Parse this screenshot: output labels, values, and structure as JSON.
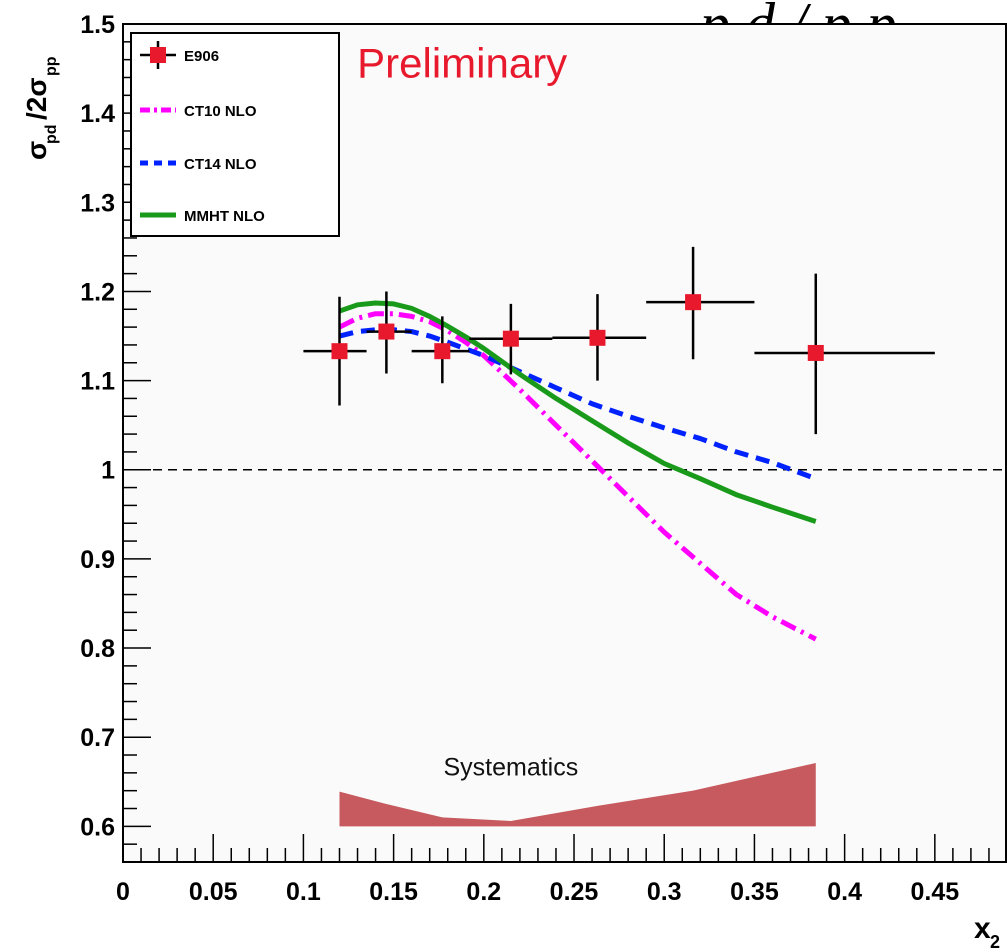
{
  "chart_data": {
    "type": "scatter",
    "title": "",
    "top_text": "p d / p p",
    "xlabel": "x",
    "xlabel_sub": "2",
    "ylabel": "σ",
    "ylabel_sub": "pd",
    "ylabel_mid": "/2σ",
    "ylabel_sub2": "pp",
    "xlim": [
      0,
      0.49
    ],
    "ylim": [
      0.56,
      1.5
    ],
    "x_ticks": [
      0,
      0.05,
      0.1,
      0.15,
      0.2,
      0.25,
      0.3,
      0.35,
      0.4,
      0.45
    ],
    "x_tick_labels": [
      "0",
      "0.05",
      "0.1",
      "0.15",
      "0.2",
      "0.25",
      "0.3",
      "0.35",
      "0.4",
      "0.45"
    ],
    "y_ticks": [
      0.6,
      0.7,
      0.8,
      0.9,
      1.0,
      1.1,
      1.2,
      1.3,
      1.4,
      1.5
    ],
    "y_tick_labels": [
      "0.6",
      "0.7",
      "0.8",
      "0.9",
      "1",
      "1.1",
      "1.2",
      "1.3",
      "1.4",
      "1.5"
    ],
    "reference_line": {
      "y": 1.0,
      "style": "dashed",
      "color": "#000000"
    },
    "legend": {
      "placement": "top-left",
      "entries": [
        {
          "label": "E906",
          "series": "E906"
        },
        {
          "label": "CT10 NLO",
          "series": "CT10 NLO"
        },
        {
          "label": "CT14 NLO",
          "series": "CT14 NLO"
        },
        {
          "label": "MMHT NLO",
          "series": "MMHT NLO"
        }
      ]
    },
    "annotations": [
      {
        "text": "Preliminary",
        "x": 0.188,
        "y": 1.44,
        "color": "#e8192c"
      },
      {
        "text": "Systematics",
        "x": 0.215,
        "y": 0.657,
        "color": "#111111"
      }
    ],
    "series": [
      {
        "name": "E906",
        "kind": "points",
        "color": "#e8192c",
        "points": [
          {
            "x": 0.12,
            "y": 1.133,
            "xerr": [
              0.1,
              0.135
            ],
            "yerr": [
              1.072,
              1.194
            ]
          },
          {
            "x": 0.146,
            "y": 1.155,
            "xerr": [
              0.135,
              0.16
            ],
            "yerr": [
              1.108,
              1.2
            ]
          },
          {
            "x": 0.177,
            "y": 1.133,
            "xerr": [
              0.16,
              0.192
            ],
            "yerr": [
              1.097,
              1.172
            ]
          },
          {
            "x": 0.215,
            "y": 1.147,
            "xerr": [
              0.192,
              0.238
            ],
            "yerr": [
              1.107,
              1.186
            ]
          },
          {
            "x": 0.263,
            "y": 1.148,
            "xerr": [
              0.238,
              0.29
            ],
            "yerr": [
              1.1,
              1.197
            ]
          },
          {
            "x": 0.316,
            "y": 1.188,
            "xerr": [
              0.29,
              0.35
            ],
            "yerr": [
              1.124,
              1.25
            ]
          },
          {
            "x": 0.384,
            "y": 1.131,
            "xerr": [
              0.35,
              0.45
            ],
            "yerr": [
              1.04,
              1.22
            ]
          }
        ]
      },
      {
        "name": "CT10 NLO",
        "kind": "line",
        "style": "dashdot",
        "color": "#ff00ff",
        "x": [
          0.12,
          0.13,
          0.14,
          0.15,
          0.16,
          0.17,
          0.18,
          0.19,
          0.2,
          0.22,
          0.24,
          0.26,
          0.28,
          0.3,
          0.32,
          0.34,
          0.36,
          0.384
        ],
        "y": [
          1.16,
          1.17,
          1.175,
          1.175,
          1.172,
          1.166,
          1.156,
          1.143,
          1.128,
          1.09,
          1.05,
          1.01,
          0.97,
          0.93,
          0.895,
          0.86,
          0.835,
          0.81
        ]
      },
      {
        "name": "CT14 NLO",
        "kind": "line",
        "style": "dashed",
        "color": "#0022ff",
        "x": [
          0.12,
          0.13,
          0.14,
          0.15,
          0.16,
          0.17,
          0.18,
          0.2,
          0.22,
          0.24,
          0.26,
          0.28,
          0.3,
          0.32,
          0.34,
          0.36,
          0.384
        ],
        "y": [
          1.15,
          1.155,
          1.157,
          1.157,
          1.155,
          1.15,
          1.143,
          1.128,
          1.11,
          1.092,
          1.074,
          1.06,
          1.047,
          1.035,
          1.02,
          1.008,
          0.99
        ]
      },
      {
        "name": "MMHT NLO",
        "kind": "line",
        "style": "solid",
        "color": "#1a9a1a",
        "x": [
          0.12,
          0.13,
          0.14,
          0.15,
          0.16,
          0.17,
          0.18,
          0.19,
          0.2,
          0.22,
          0.24,
          0.26,
          0.28,
          0.3,
          0.32,
          0.34,
          0.36,
          0.384
        ],
        "y": [
          1.178,
          1.185,
          1.187,
          1.186,
          1.181,
          1.172,
          1.161,
          1.149,
          1.136,
          1.107,
          1.08,
          1.055,
          1.03,
          1.007,
          0.99,
          0.972,
          0.958,
          0.942
        ]
      },
      {
        "name": "Systematics",
        "kind": "band",
        "color": "#c65a5e",
        "baseline": 0.6,
        "x": [
          0.12,
          0.146,
          0.177,
          0.215,
          0.263,
          0.316,
          0.384
        ],
        "y": [
          0.639,
          0.625,
          0.61,
          0.606,
          0.623,
          0.64,
          0.671
        ]
      }
    ]
  }
}
